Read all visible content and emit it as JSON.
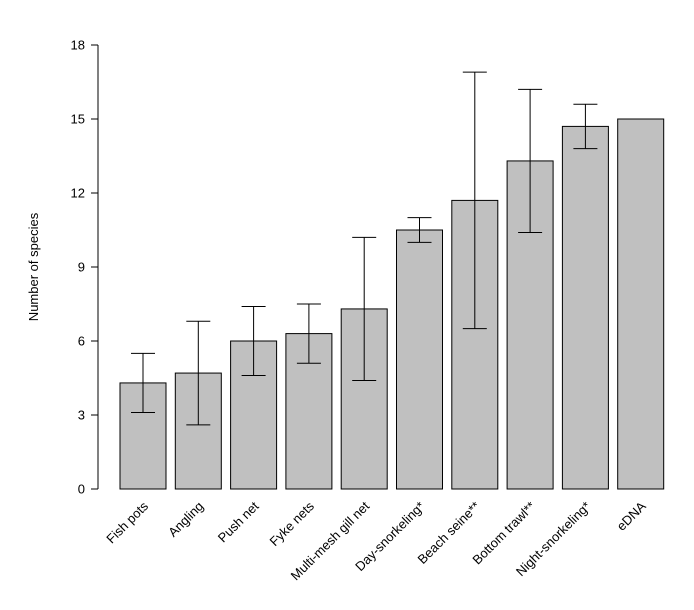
{
  "chart_data": {
    "type": "bar",
    "title": "",
    "xlabel": "",
    "ylabel": "Number of species",
    "ylim": [
      0,
      18
    ],
    "yticks": [
      0,
      3,
      6,
      9,
      12,
      15,
      18
    ],
    "grid": false,
    "legend": "none",
    "bar_color": "#c0c0c0",
    "edge_color": "#000000",
    "categories": [
      "Fish pots",
      "Angling",
      "Push net",
      "Fyke nets",
      "Multi-mesh gill net",
      "Day-snorkeling*",
      "Beach seine**",
      "Bottom trawl**",
      "Night-snorkeling*",
      "eDNA"
    ],
    "values": [
      4.3,
      4.7,
      6.0,
      6.3,
      7.3,
      10.5,
      11.7,
      13.3,
      14.7,
      15.0
    ],
    "error_low": [
      3.1,
      2.6,
      4.6,
      5.1,
      4.4,
      10.0,
      6.5,
      10.4,
      13.8,
      null
    ],
    "error_high": [
      5.5,
      6.8,
      7.4,
      7.5,
      10.2,
      11.0,
      16.9,
      16.2,
      15.6,
      null
    ]
  }
}
